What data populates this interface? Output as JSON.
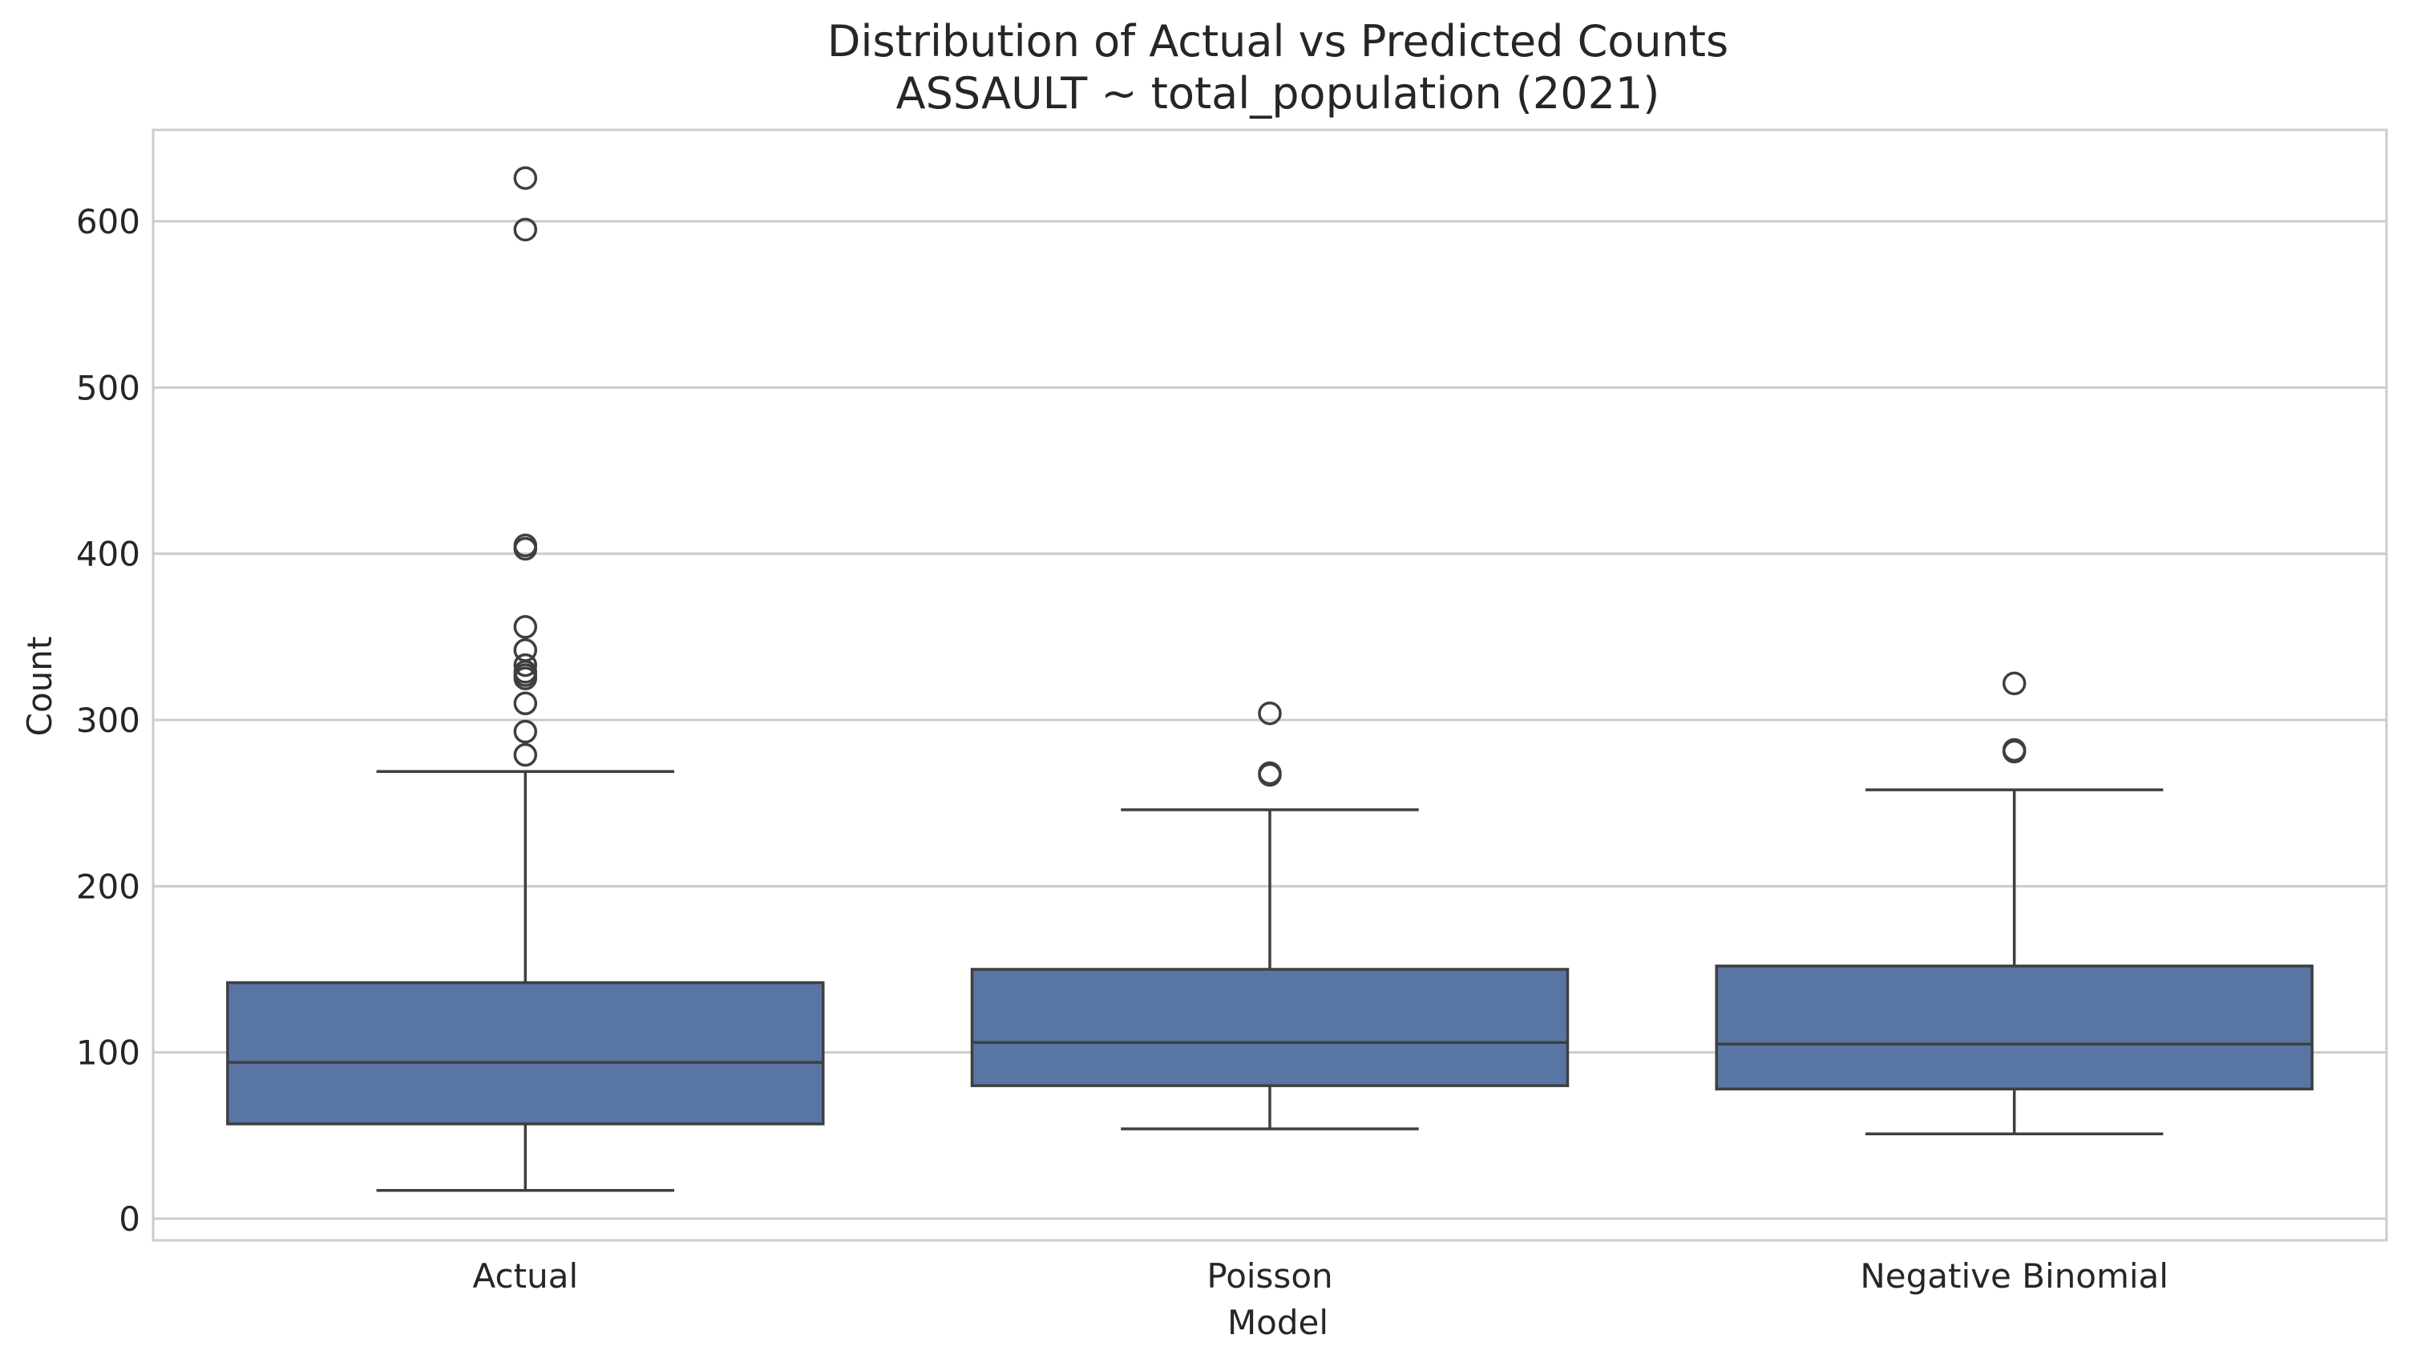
{
  "chart_data": {
    "type": "box",
    "title": [
      "Distribution of Actual vs Predicted Counts",
      "ASSAULT ~ total_population (2021)"
    ],
    "xlabel": "Model",
    "ylabel": "Count",
    "ylim": [
      -13,
      655
    ],
    "yticks": [
      0,
      100,
      200,
      300,
      400,
      500,
      600
    ],
    "grid": "horizontal",
    "categories": [
      "Actual",
      "Poisson",
      "Negative Binomial"
    ],
    "colors": {
      "box_fill": "#5875a4",
      "line": "#3f3f3f",
      "grid": "#cccccc",
      "frame": "#cccccc"
    },
    "boxes": [
      {
        "category": "Actual",
        "whisker_low": 17,
        "q1": 57,
        "median": 94,
        "q3": 142,
        "whisker_high": 269,
        "outliers": [
          279,
          293,
          310,
          325,
          327,
          329,
          333,
          342,
          356,
          403,
          405,
          595,
          626
        ]
      },
      {
        "category": "Poisson",
        "whisker_low": 54,
        "q1": 80,
        "median": 106,
        "q3": 150,
        "whisker_high": 246,
        "outliers": [
          267,
          268,
          304
        ]
      },
      {
        "category": "Negative Binomial",
        "whisker_low": 51,
        "q1": 78,
        "median": 105,
        "q3": 152,
        "whisker_high": 258,
        "outliers": [
          281,
          282,
          322
        ]
      }
    ]
  }
}
